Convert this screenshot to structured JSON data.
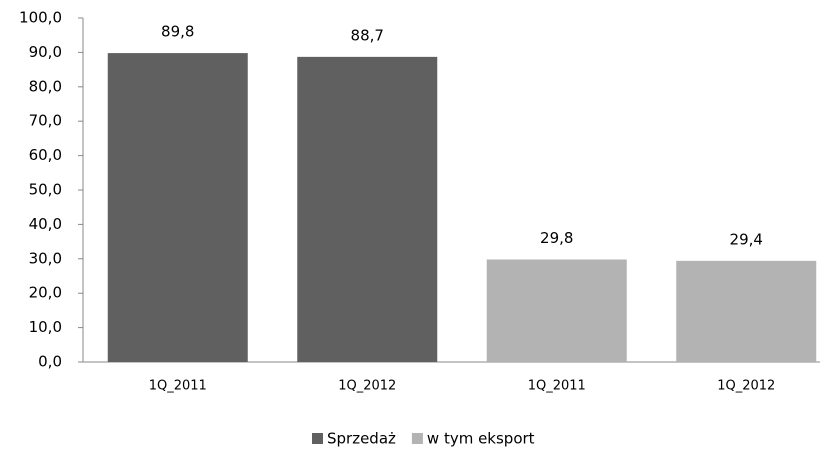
{
  "chart_data": {
    "type": "bar",
    "categories": [
      "1Q_2011",
      "1Q_2012",
      "1Q_2011",
      "1Q_2012"
    ],
    "series": [
      {
        "name": "Sprzedaż",
        "color": "#606060",
        "values": [
          89.8,
          88.7,
          null,
          null
        ],
        "value_labels": [
          "89,8",
          "88,7",
          null,
          null
        ]
      },
      {
        "name": "w tym eksport",
        "color": "#b3b3b3",
        "values": [
          null,
          null,
          29.8,
          29.4
        ],
        "value_labels": [
          null,
          null,
          "29,8",
          "29,4"
        ]
      }
    ],
    "ylim": [
      0,
      100
    ],
    "yticks": [
      {
        "value": 0,
        "label": "0,0"
      },
      {
        "value": 10,
        "label": "10,0"
      },
      {
        "value": 20,
        "label": "20,0"
      },
      {
        "value": 30,
        "label": "30,0"
      },
      {
        "value": 40,
        "label": "40,0"
      },
      {
        "value": 50,
        "label": "50,0"
      },
      {
        "value": 60,
        "label": "60,0"
      },
      {
        "value": 70,
        "label": "70,0"
      },
      {
        "value": 80,
        "label": "80,0"
      },
      {
        "value": 90,
        "label": "90,0"
      },
      {
        "value": 100,
        "label": "100,0"
      }
    ],
    "grid": false,
    "legend": "bottom"
  }
}
